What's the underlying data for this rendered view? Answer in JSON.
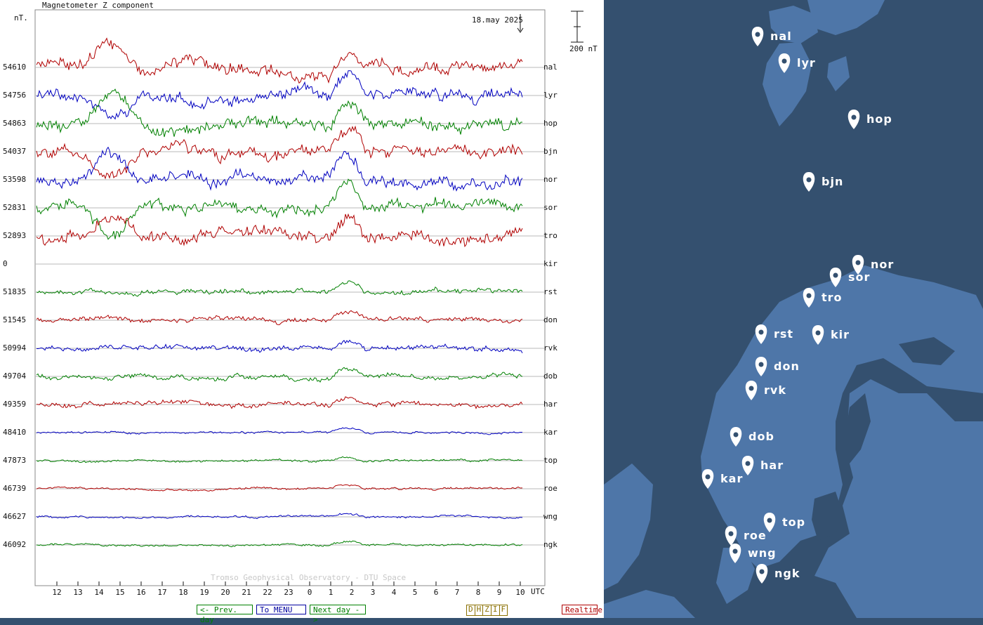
{
  "plot": {
    "title": "Magnetometer Z component",
    "unit": "nT.",
    "date": "18.may 2025",
    "scale": "200 nT",
    "credit": "Tromso Geophysical Observatory - DTU Space",
    "x_axis_label": "UTC",
    "x_ticks": [
      "12",
      "13",
      "14",
      "15",
      "16",
      "17",
      "18",
      "19",
      "20",
      "21",
      "22",
      "23",
      "0",
      "1",
      "2",
      "3",
      "4",
      "5",
      "6",
      "7",
      "8",
      "9",
      "10"
    ]
  },
  "stations": [
    {
      "code": "nal",
      "baseline": "54610",
      "color": "#b00000"
    },
    {
      "code": "lyr",
      "baseline": "54756",
      "color": "#0000c0"
    },
    {
      "code": "hop",
      "baseline": "54863",
      "color": "#008000"
    },
    {
      "code": "bjn",
      "baseline": "54037",
      "color": "#b00000"
    },
    {
      "code": "nor",
      "baseline": "53598",
      "color": "#0000c0"
    },
    {
      "code": "sor",
      "baseline": "52831",
      "color": "#008000"
    },
    {
      "code": "tro",
      "baseline": "52893",
      "color": "#b00000"
    },
    {
      "code": "kir",
      "baseline": "0",
      "color": "#0000c0"
    },
    {
      "code": "rst",
      "baseline": "51835",
      "color": "#008000"
    },
    {
      "code": "don",
      "baseline": "51545",
      "color": "#b00000"
    },
    {
      "code": "rvk",
      "baseline": "50994",
      "color": "#0000c0"
    },
    {
      "code": "dob",
      "baseline": "49704",
      "color": "#008000"
    },
    {
      "code": "har",
      "baseline": "49359",
      "color": "#b00000"
    },
    {
      "code": "kar",
      "baseline": "48410",
      "color": "#0000c0"
    },
    {
      "code": "top",
      "baseline": "47873",
      "color": "#008000"
    },
    {
      "code": "roe",
      "baseline": "46739",
      "color": "#b00000"
    },
    {
      "code": "wng",
      "baseline": "46627",
      "color": "#0000c0"
    },
    {
      "code": "ngk",
      "baseline": "46092",
      "color": "#008000"
    }
  ],
  "nav": {
    "prev": "<- Prev. day",
    "menu": "To MENU",
    "next": "Next day ->",
    "components": [
      "D",
      "H",
      "Z",
      "I",
      "F"
    ],
    "realtime": "Realtime"
  },
  "map": {
    "sea_color": "#34506f",
    "land_color": "#4e76a8",
    "markers": [
      {
        "code": "nal"
      },
      {
        "code": "lyr"
      },
      {
        "code": "hop"
      },
      {
        "code": "bjn"
      },
      {
        "code": "nor"
      },
      {
        "code": "sor"
      },
      {
        "code": "tro"
      },
      {
        "code": "rst"
      },
      {
        "code": "kir"
      },
      {
        "code": "don"
      },
      {
        "code": "rvk"
      },
      {
        "code": "dob"
      },
      {
        "code": "har"
      },
      {
        "code": "kar"
      },
      {
        "code": "top"
      },
      {
        "code": "roe"
      },
      {
        "code": "wng"
      },
      {
        "code": "ngk"
      }
    ]
  }
}
